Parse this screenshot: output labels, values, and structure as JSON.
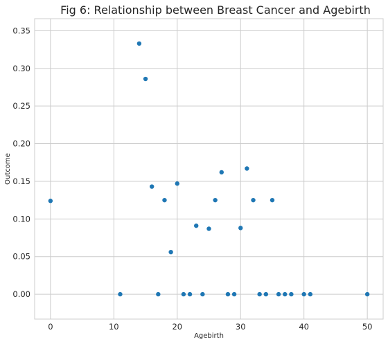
{
  "chart_data": {
    "type": "scatter",
    "title": "Fig 6:  Relationship between Breast Cancer and Agebirth",
    "xlabel": "Agebirth",
    "ylabel": "Outcome",
    "xlim": [
      -2.5,
      52.5
    ],
    "ylim": [
      -0.033,
      0.366
    ],
    "xticks": [
      0,
      10,
      20,
      30,
      40,
      50
    ],
    "yticks": [
      0.0,
      0.05,
      0.1,
      0.15,
      0.2,
      0.25,
      0.3,
      0.35
    ],
    "ytick_labels": [
      "0.00",
      "0.05",
      "0.10",
      "0.15",
      "0.20",
      "0.25",
      "0.30",
      "0.35"
    ],
    "grid": true,
    "point_color": "#1f77b4",
    "points": [
      {
        "x": 0,
        "y": 0.124
      },
      {
        "x": 11,
        "y": 0.0
      },
      {
        "x": 14,
        "y": 0.333
      },
      {
        "x": 15,
        "y": 0.286
      },
      {
        "x": 16,
        "y": 0.143
      },
      {
        "x": 17,
        "y": 0.0
      },
      {
        "x": 18,
        "y": 0.125
      },
      {
        "x": 19,
        "y": 0.056
      },
      {
        "x": 20,
        "y": 0.147
      },
      {
        "x": 21,
        "y": 0.0
      },
      {
        "x": 22,
        "y": 0.0
      },
      {
        "x": 23,
        "y": 0.091
      },
      {
        "x": 24,
        "y": 0.0
      },
      {
        "x": 25,
        "y": 0.087
      },
      {
        "x": 26,
        "y": 0.125
      },
      {
        "x": 27,
        "y": 0.162
      },
      {
        "x": 28,
        "y": 0.0
      },
      {
        "x": 29,
        "y": 0.0
      },
      {
        "x": 30,
        "y": 0.088
      },
      {
        "x": 31,
        "y": 0.167
      },
      {
        "x": 32,
        "y": 0.125
      },
      {
        "x": 33,
        "y": 0.0
      },
      {
        "x": 34,
        "y": 0.0
      },
      {
        "x": 35,
        "y": 0.125
      },
      {
        "x": 36,
        "y": 0.0
      },
      {
        "x": 37,
        "y": 0.0
      },
      {
        "x": 38,
        "y": 0.0
      },
      {
        "x": 40,
        "y": 0.0
      },
      {
        "x": 41,
        "y": 0.0
      },
      {
        "x": 50,
        "y": 0.0
      }
    ]
  }
}
